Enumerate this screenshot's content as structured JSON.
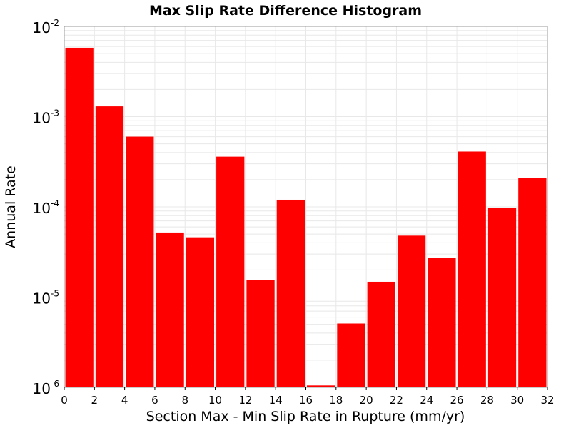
{
  "chart_data": {
    "type": "bar",
    "title": "Max Slip Rate Difference Histogram",
    "xlabel": "Section Max - Min Slip Rate in Rupture (mm/yr)",
    "ylabel": "Annual Rate",
    "xlim": [
      0,
      32
    ],
    "ylim": [
      1e-06,
      0.01
    ],
    "yscale": "log",
    "bin_width": 2,
    "bar_color": "#ff0000",
    "grid": true,
    "x_ticks": [
      "0",
      "2",
      "4",
      "6",
      "8",
      "10",
      "12",
      "14",
      "16",
      "18",
      "20",
      "22",
      "24",
      "26",
      "28",
      "30",
      "32"
    ],
    "y_ticks": [
      {
        "base": "10",
        "exp": "-2",
        "value": 0.01
      },
      {
        "base": "10",
        "exp": "-3",
        "value": 0.001
      },
      {
        "base": "10",
        "exp": "-4",
        "value": 0.0001
      },
      {
        "base": "10",
        "exp": "-5",
        "value": 1e-05
      },
      {
        "base": "10",
        "exp": "-6",
        "value": 1e-06
      }
    ],
    "bins": [
      {
        "x": 1,
        "value": 0.0058
      },
      {
        "x": 3,
        "value": 0.0013
      },
      {
        "x": 5,
        "value": 0.0006
      },
      {
        "x": 7,
        "value": 5.2e-05
      },
      {
        "x": 9,
        "value": 4.6e-05
      },
      {
        "x": 11,
        "value": 0.00036
      },
      {
        "x": 13,
        "value": 1.55e-05
      },
      {
        "x": 15,
        "value": 0.00012
      },
      {
        "x": 17,
        "value": 1.05e-06
      },
      {
        "x": 19,
        "value": 5.1e-06
      },
      {
        "x": 21,
        "value": 1.48e-05
      },
      {
        "x": 23,
        "value": 4.8e-05
      },
      {
        "x": 25,
        "value": 2.7e-05
      },
      {
        "x": 27,
        "value": 0.00041
      },
      {
        "x": 29,
        "value": 9.7e-05
      },
      {
        "x": 31,
        "value": 0.00021
      }
    ]
  }
}
